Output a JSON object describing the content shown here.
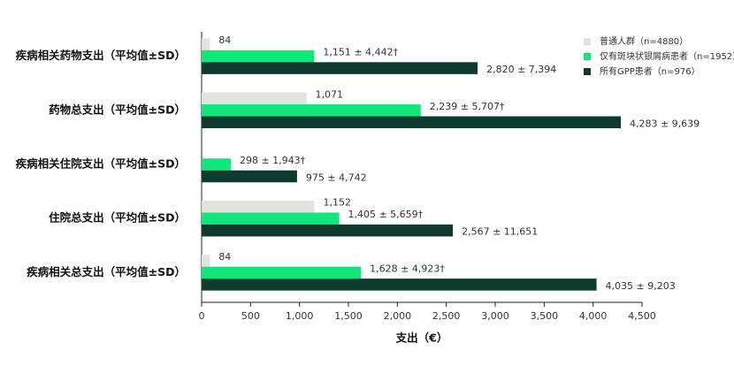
{
  "chart_data": {
    "type": "bar",
    "orientation": "horizontal",
    "xlabel": "支出（€）",
    "categories": [
      "疾病相关药物支出（平均值±SD）",
      "药物总支出（平均值±SD）",
      "疾病相关住院支出（平均值±SD）",
      "住院总支出（平均值±SD）",
      "疾病相关总支出（平均值±SD）"
    ],
    "series": [
      {
        "name": "普通人群（n=4880）",
        "color": "#e3e3de",
        "values": [
          84,
          1071,
          null,
          1152,
          84
        ],
        "value_labels": [
          "84",
          "1,071",
          null,
          "1,152",
          "84"
        ],
        "label_colors": [
          "#333333",
          "#e8202a",
          null,
          "#e8202a",
          "#e8202a"
        ]
      },
      {
        "name": "仅有斑块状银屑病患者（n=1952）",
        "color": "#12e57a",
        "values": [
          1151,
          2239,
          298,
          1405,
          1628
        ],
        "value_labels": [
          "1,151 ± 4,442†",
          "2,239 ± 5,707†",
          "298 ± 1,943†",
          "1,405 ± 5,659†",
          "1,628 ± 4,923†"
        ]
      },
      {
        "name": "所有GPP患者（n=976）",
        "color": "#0e3a2f",
        "values": [
          2820,
          4283,
          975,
          2567,
          4035
        ],
        "value_labels": [
          "2,820 ± 7,394",
          "4,283 ± 9,639",
          "975 ± 4,742",
          "2,567 ± 11,651",
          "4,035 ± 9,203"
        ]
      }
    ],
    "xlim": [
      0,
      4500
    ],
    "xticks": [
      0,
      500,
      {
        "value": 1000,
        "label": "1,000"
      },
      {
        "value": 1500,
        "label": "1,500"
      },
      {
        "value": 2000,
        "label": "2,000"
      },
      {
        "value": 2500,
        "label": "2,500"
      },
      {
        "value": 3000,
        "label": "3,000"
      },
      {
        "value": 3500,
        "label": "3,500"
      },
      {
        "value": 4000,
        "label": "4,000"
      },
      {
        "value": 4500,
        "label": "4,500"
      }
    ],
    "legend": "upper right"
  }
}
